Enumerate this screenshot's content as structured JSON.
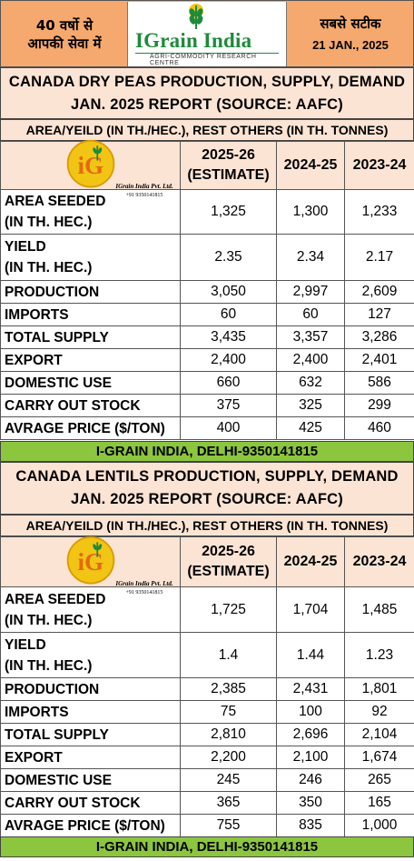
{
  "header": {
    "left_line1": "40 वर्षो से",
    "left_line2": "आपकी सेवा में",
    "brand_name": "IGrain India",
    "brand_tagline": "AGRI-COMMODITY RESEARCH CENTRE",
    "right_line1": "सबसे सटीक",
    "date": "21 JAN., 2025"
  },
  "logo": {
    "monogram": "iG",
    "caption": "IGrain India Pvt. Ltd.",
    "phone": "+91 9350141815"
  },
  "sections": [
    {
      "title_line1": "CANADA DRY PEAS PRODUCTION, SUPPLY, DEMAND",
      "title_line2": "JAN. 2025 REPORT (SOURCE: AAFC)",
      "unit_note": "AREA/YEILD (IN TH./HEC.), REST OTHERS (IN TH. TONNES)",
      "col1_line1": "2025-26",
      "col1_line2": "(ESTIMATE)",
      "col2": "2024-25",
      "col3": "2023-24",
      "rows": [
        {
          "label": "AREA SEEDED",
          "label2": "(IN TH. HEC.)",
          "v1": "1,325",
          "v2": "1,300",
          "v3": "1,233"
        },
        {
          "label": "YIELD",
          "label2": "(IN TH. HEC.)",
          "v1": "2.35",
          "v2": "2.34",
          "v3": "2.17"
        },
        {
          "label": "PRODUCTION",
          "v1": "3,050",
          "v2": "2,997",
          "v3": "2,609"
        },
        {
          "label": "IMPORTS",
          "v1": "60",
          "v2": "60",
          "v3": "127"
        },
        {
          "label": "TOTAL SUPPLY",
          "v1": "3,435",
          "v2": "3,357",
          "v3": "3,286"
        },
        {
          "label": "EXPORT",
          "v1": "2,400",
          "v2": "2,400",
          "v3": "2,401"
        },
        {
          "label": "DOMESTIC USE",
          "v1": "660",
          "v2": "632",
          "v3": "586"
        },
        {
          "label": "CARRY OUT STOCK",
          "v1": "375",
          "v2": "325",
          "v3": "299"
        },
        {
          "label": "AVRAGE PRICE ($/TON)",
          "v1": "400",
          "v2": "425",
          "v3": "460"
        }
      ],
      "footer": "I-GRAIN INDIA, DELHI-9350141815"
    },
    {
      "title_line1": "CANADA LENTILS PRODUCTION, SUPPLY, DEMAND",
      "title_line2": "JAN. 2025 REPORT (SOURCE: AAFC)",
      "unit_note": "AREA/YEILD (IN TH./HEC.), REST OTHERS (IN TH. TONNES)",
      "col1_line1": "2025-26",
      "col1_line2": "(ESTIMATE)",
      "col2": "2024-25",
      "col3": "2023-24",
      "rows": [
        {
          "label": "AREA SEEDED",
          "label2": "(IN TH. HEC.)",
          "v1": "1,725",
          "v2": "1,704",
          "v3": "1,485"
        },
        {
          "label": "YIELD",
          "label2": "(IN TH. HEC.)",
          "v1": "1.4",
          "v2": "1.44",
          "v3": "1.23"
        },
        {
          "label": "PRODUCTION",
          "v1": "2,385",
          "v2": "2,431",
          "v3": "1,801"
        },
        {
          "label": "IMPORTS",
          "v1": "75",
          "v2": "100",
          "v3": "92"
        },
        {
          "label": "TOTAL SUPPLY",
          "v1": "2,810",
          "v2": "2,696",
          "v3": "2,104"
        },
        {
          "label": "EXPORT",
          "v1": "2,200",
          "v2": "2,100",
          "v3": "1,674"
        },
        {
          "label": "DOMESTIC USE",
          "v1": "245",
          "v2": "246",
          "v3": "265"
        },
        {
          "label": "CARRY OUT STOCK",
          "v1": "365",
          "v2": "350",
          "v3": "165"
        },
        {
          "label": "AVRAGE PRICE ($/TON)",
          "v1": "755",
          "v2": "835",
          "v3": "1,000"
        }
      ],
      "footer": "I-GRAIN INDIA, DELHI-9350141815"
    }
  ],
  "colors": {
    "header_orange": "#f5a96e",
    "section_peach": "#fce4d4",
    "footer_green": "#8cc63e",
    "brand_green": "#1f8a3a",
    "logo_gold": "#f2c515"
  }
}
